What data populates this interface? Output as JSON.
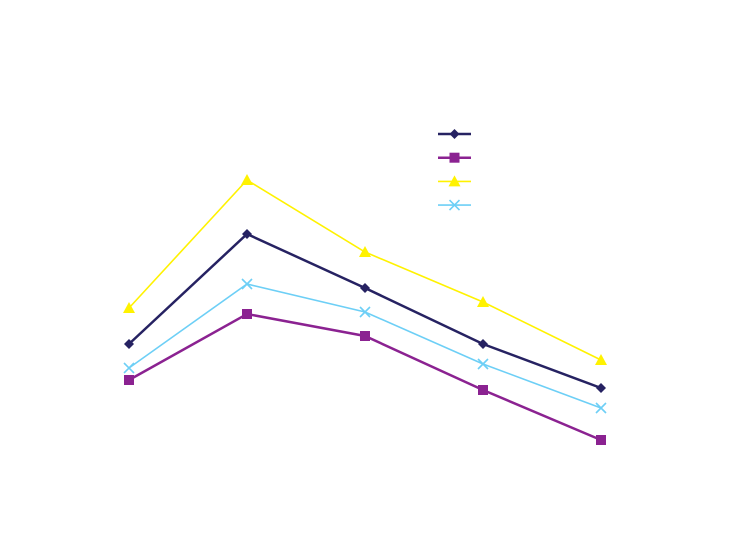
{
  "chart_data": {
    "type": "line",
    "categories": [
      null,
      null,
      null,
      null,
      null
    ],
    "ylim": [
      0,
      100
    ],
    "legend": "top-right",
    "series": [
      {
        "color": "#262262",
        "marker": "diamond",
        "values": [
          34,
          61.5,
          48,
          34,
          23
        ]
      },
      {
        "color": "#8b2291",
        "marker": "square",
        "values": [
          25,
          41.5,
          36,
          22.5,
          10
        ]
      },
      {
        "color": "#fff200",
        "marker": "triangle",
        "values": [
          43,
          75,
          57,
          44.5,
          30
        ]
      },
      {
        "color": "#6dcff6",
        "marker": "x",
        "values": [
          28,
          49,
          42,
          29,
          18
        ]
      }
    ]
  }
}
